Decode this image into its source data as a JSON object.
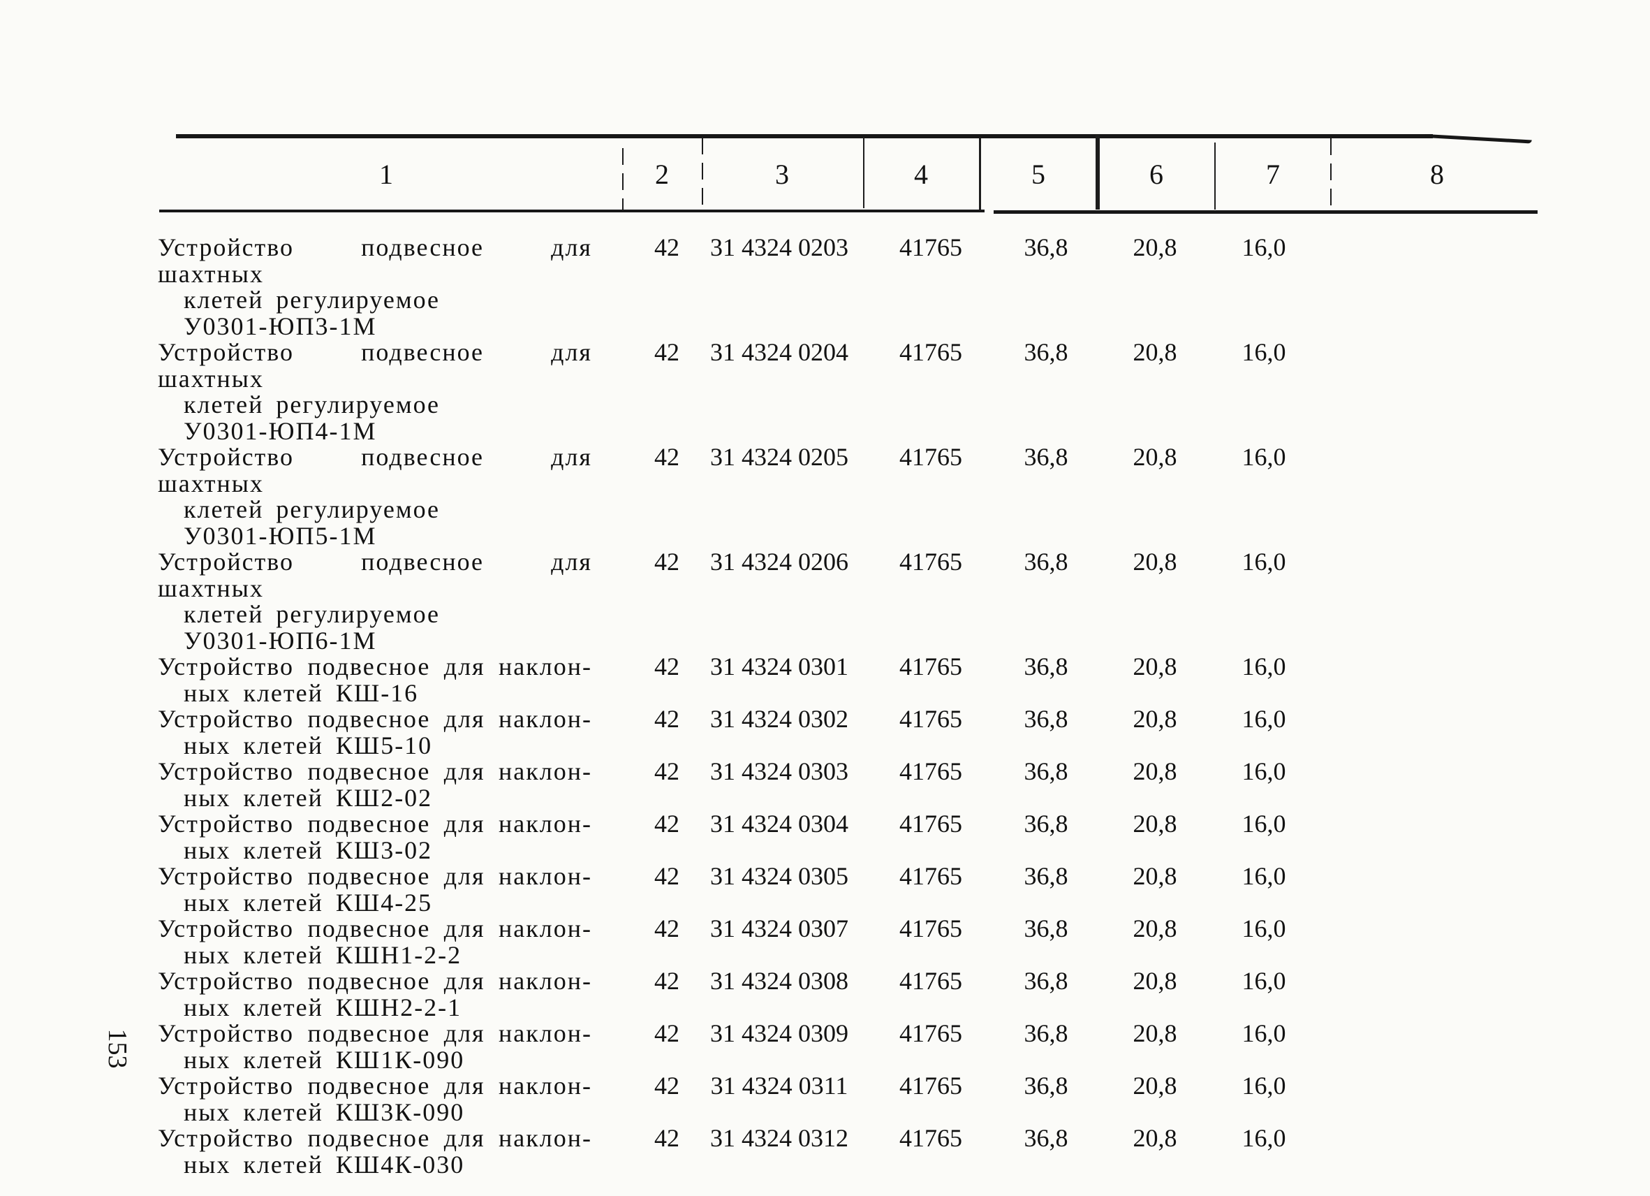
{
  "page": {
    "number": "153"
  },
  "table": {
    "header_columns": [
      "1",
      "2",
      "3",
      "4",
      "5",
      "6",
      "7",
      "8"
    ],
    "rows": [
      {
        "l1": "Устройство подвесное для шахтных",
        "l2": "клетей регулируемое",
        "l3": "У0301-ЮП3-1М",
        "c2": "42",
        "c3": "31 4324 0203",
        "c4": "41765",
        "c5": "36,8",
        "c6": "20,8",
        "c7": "16,0"
      },
      {
        "l1": "Устройство подвесное для шахтных",
        "l2": "клетей регулируемое",
        "l3": "У0301-ЮП4-1М",
        "c2": "42",
        "c3": "31 4324 0204",
        "c4": "41765",
        "c5": "36,8",
        "c6": "20,8",
        "c7": "16,0"
      },
      {
        "l1": "Устройство подвесное для шахтных",
        "l2": "клетей регулируемое",
        "l3": "У0301-ЮП5-1М",
        "c2": "42",
        "c3": "31 4324 0205",
        "c4": "41765",
        "c5": "36,8",
        "c6": "20,8",
        "c7": "16,0"
      },
      {
        "l1": "Устройство подвесное для шахтных",
        "l2": "клетей регулируемое",
        "l3": "У0301-ЮП6-1М",
        "c2": "42",
        "c3": "31 4324 0206",
        "c4": "41765",
        "c5": "36,8",
        "c6": "20,8",
        "c7": "16,0"
      },
      {
        "l1": "Устройство подвесное для наклон-",
        "l2": "ных клетей КШ-16",
        "c2": "42",
        "c3": "31 4324 0301",
        "c4": "41765",
        "c5": "36,8",
        "c6": "20,8",
        "c7": "16,0"
      },
      {
        "l1": "Устройство подвесное для наклон-",
        "l2": "ных клетей КШ5-10",
        "c2": "42",
        "c3": "31 4324 0302",
        "c4": "41765",
        "c5": "36,8",
        "c6": "20,8",
        "c7": "16,0"
      },
      {
        "l1": "Устройство подвесное для наклон-",
        "l2": "ных клетей КШ2-02",
        "c2": "42",
        "c3": "31 4324 0303",
        "c4": "41765",
        "c5": "36,8",
        "c6": "20,8",
        "c7": "16,0"
      },
      {
        "l1": "Устройство подвесное для наклон-",
        "l2": "ных клетей КШ3-02",
        "c2": "42",
        "c3": "31 4324 0304",
        "c4": "41765",
        "c5": "36,8",
        "c6": "20,8",
        "c7": "16,0"
      },
      {
        "l1": "Устройство подвесное для наклон-",
        "l2": "ных клетей КШ4-25",
        "c2": "42",
        "c3": "31 4324 0305",
        "c4": "41765",
        "c5": "36,8",
        "c6": "20,8",
        "c7": "16,0"
      },
      {
        "l1": "Устройство подвесное для наклон-",
        "l2": "ных клетей КШН1-2-2",
        "c2": "42",
        "c3": "31 4324 0307",
        "c4": "41765",
        "c5": "36,8",
        "c6": "20,8",
        "c7": "16,0"
      },
      {
        "l1": "Устройство подвесное для наклон-",
        "l2": "ных клетей КШН2-2-1",
        "c2": "42",
        "c3": "31 4324 0308",
        "c4": "41765",
        "c5": "36,8",
        "c6": "20,8",
        "c7": "16,0"
      },
      {
        "l1": "Устройство подвесное для наклон-",
        "l2": "ных клетей КШ1К-090",
        "c2": "42",
        "c3": "31 4324 0309",
        "c4": "41765",
        "c5": "36,8",
        "c6": "20,8",
        "c7": "16,0"
      },
      {
        "l1": "Устройство подвесное для наклон-",
        "l2": "ных клетей КШ3К-090",
        "c2": "42",
        "c3": "31 4324 0311",
        "c4": "41765",
        "c5": "36,8",
        "c6": "20,8",
        "c7": "16,0"
      },
      {
        "l1": "Устройство подвесное для наклон-",
        "l2": "ных клетей КШ4К-030",
        "c2": "42",
        "c3": "31 4324 0312",
        "c4": "41765",
        "c5": "36,8",
        "c6": "20,8",
        "c7": "16,0"
      }
    ]
  }
}
